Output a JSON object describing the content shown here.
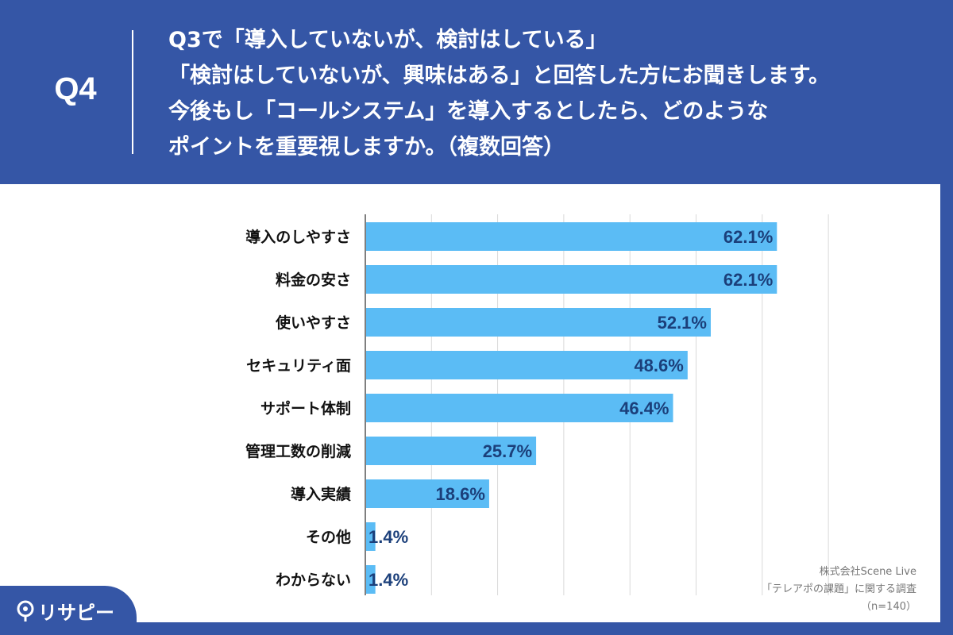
{
  "header": {
    "q_label": "Q4",
    "question_lines": [
      "Q3で「導入していないが、検討はしている」",
      "「検討はしていないが、興味はある」と回答した方にお聞きします。",
      "今後もし「コールシステム」を導入するとしたら、どのような",
      "ポイントを重要視しますか。（複数回答）"
    ]
  },
  "chart_data": {
    "type": "bar",
    "orientation": "horizontal",
    "categories": [
      "導入のしやすさ",
      "料金の安さ",
      "使いやすさ",
      "セキュリティ面",
      "サポート体制",
      "管理工数の削減",
      "導入実績",
      "その他",
      "わからない"
    ],
    "values": [
      62.1,
      62.1,
      52.1,
      48.6,
      46.4,
      25.7,
      18.6,
      1.4,
      1.4
    ],
    "value_labels": [
      "62.1%",
      "62.1%",
      "52.1%",
      "48.6%",
      "46.4%",
      "25.7%",
      "18.6%",
      "1.4%",
      "1.4%"
    ],
    "xlim": [
      0,
      70
    ],
    "grid": true,
    "bar_color": "#5bbcf5",
    "value_label_color": "#1b3f7a"
  },
  "source": {
    "line1": "株式会社Scene Live",
    "line2": "「テレアポの課題」に関する調査",
    "line3": "（n=140）"
  },
  "brand": {
    "logo_text": "リサピー",
    "logo_icon": "pin-icon"
  },
  "colors": {
    "header_bg": "#3556a6",
    "panel_bg": "#ffffff"
  }
}
